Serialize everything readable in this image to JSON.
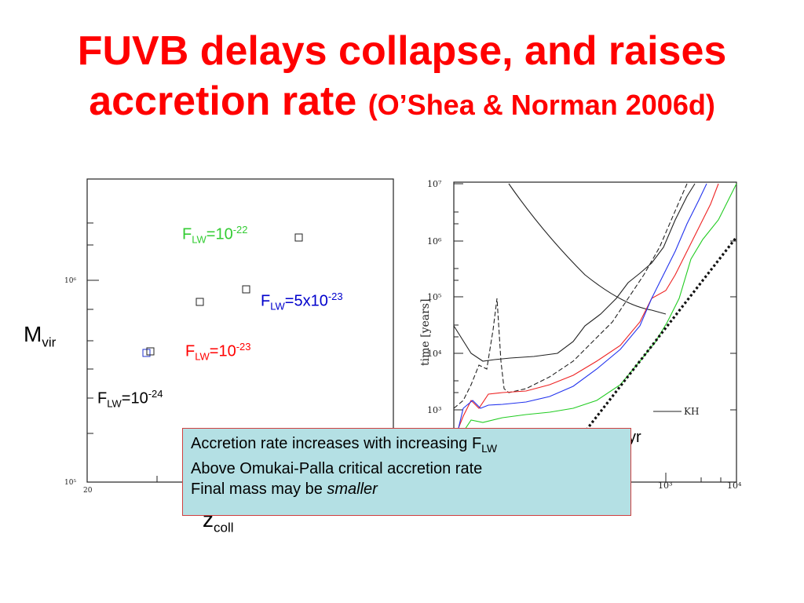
{
  "slide": {
    "title_line1": "FUVB delays collapse, and raises",
    "title_line2": "accretion rate",
    "title_ref": "(O’Shea & Norman 2006d)"
  },
  "left_plot": {
    "y_tick_top": "10⁶",
    "y_tick_bottom": "10⁵",
    "x_tick_left": "20",
    "y_axis_label_main": "M",
    "y_axis_label_sub": "vir",
    "x_axis_label_main": "z",
    "x_axis_label_sub": "coll",
    "annotations": [
      {
        "main": "F",
        "sub": "LW",
        "mid": "=10",
        "sup": "-22",
        "color": "#33cc33"
      },
      {
        "main": "F",
        "sub": "LW",
        "mid": "=5x10",
        "sup": "-23",
        "color": "#0000cc"
      },
      {
        "main": "F",
        "sub": "LW",
        "mid": "=10",
        "sup": "-23",
        "color": "#ff0000"
      },
      {
        "main": "F",
        "sub": "LW",
        "mid": "=10",
        "sup": "-24",
        "color": "#000000"
      }
    ]
  },
  "right_plot": {
    "y_axis_label": "time [years]",
    "y_ticks": [
      "10⁷",
      "10⁶",
      "10⁵",
      "10⁴",
      "10³"
    ],
    "x_ticks": [
      "10³",
      "10⁴"
    ],
    "legend_kh": "KH",
    "legend_partial": "yr"
  },
  "callout": {
    "line1": "Accretion rate increases with increasing F",
    "line1_sub": "LW",
    "line2": "Above Omukai-Palla critical accretion rate",
    "line3_prefix": "Final mass may be ",
    "line3_em": "smaller"
  }
}
